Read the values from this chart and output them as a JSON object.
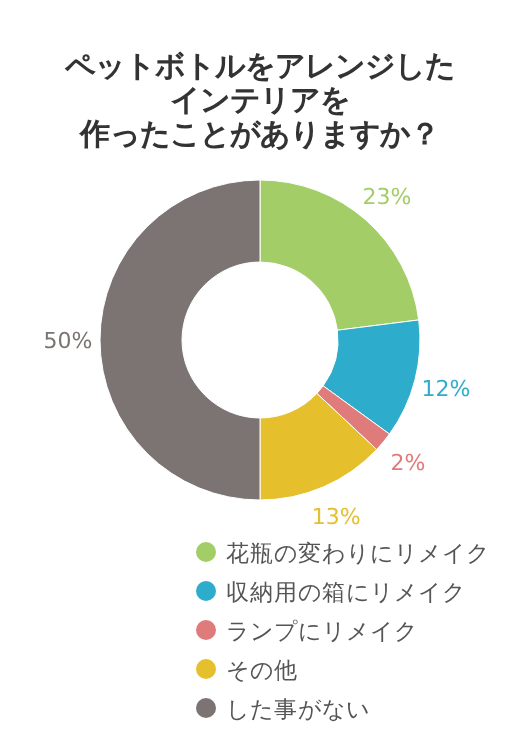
{
  "chart_data": {
    "type": "donut",
    "title": "ペットボトルをアレンジしたインテリアを作ったことがありますか？",
    "categories": [
      "花瓶の変わりにリメイク",
      "収納用の箱にリメイク",
      "ランプにリメイク",
      "その他",
      "した事がない"
    ],
    "values": [
      23,
      12,
      2,
      13,
      50
    ],
    "colors": [
      "#a3cd66",
      "#2eaccc",
      "#e07b7b",
      "#e5bf2c",
      "#7b7472"
    ],
    "value_labels": [
      "23%",
      "12%",
      "2%",
      "13%",
      "50%"
    ],
    "legend": "bottom"
  }
}
